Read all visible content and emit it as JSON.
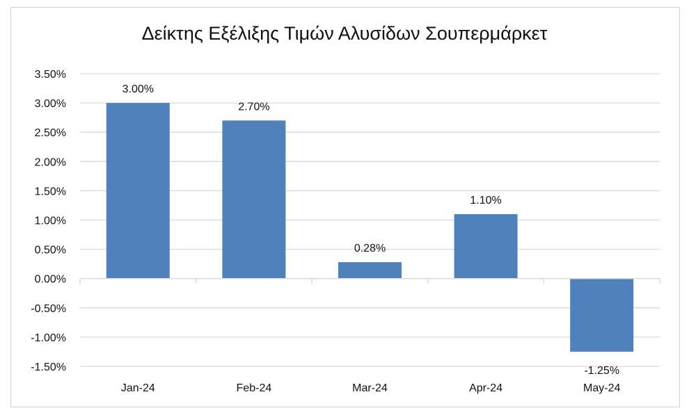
{
  "chart_data": {
    "type": "bar",
    "title": "Δείκτης Εξέλιξης Τιμών Αλυσίδων Σουπερμάρκετ",
    "categories": [
      "Jan-24",
      "Feb-24",
      "Mar-24",
      "Apr-24",
      "May-24"
    ],
    "values": [
      3.0,
      2.7,
      0.28,
      1.1,
      -1.25
    ],
    "data_labels": [
      "3.00%",
      "2.70%",
      "0.28%",
      "1.10%",
      "-1.25%"
    ],
    "xlabel": "",
    "ylabel": "",
    "ylim": [
      -1.5,
      3.5
    ],
    "yticks": [
      3.5,
      3.0,
      2.5,
      2.0,
      1.5,
      1.0,
      0.5,
      0.0,
      -0.5,
      -1.0,
      -1.5
    ],
    "ytick_labels": [
      "3.50%",
      "3.00%",
      "2.50%",
      "2.00%",
      "1.50%",
      "1.00%",
      "0.50%",
      "0.00%",
      "-0.50%",
      "-1.00%",
      "-1.50%"
    ],
    "grid": true,
    "legend": "none",
    "bar_color": "#4f81bd",
    "grid_color": "#d9d9d9"
  }
}
